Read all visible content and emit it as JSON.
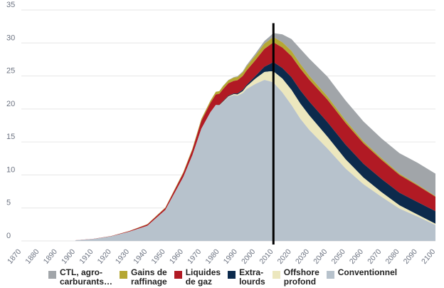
{
  "chart_data": {
    "type": "area",
    "title": "",
    "xlabel": "",
    "ylabel": "",
    "xlim": [
      1870,
      2100
    ],
    "ylim": [
      0,
      35
    ],
    "yticks": [
      0,
      5,
      10,
      15,
      20,
      25,
      30,
      35
    ],
    "xticks": [
      1870,
      1880,
      1890,
      1900,
      1910,
      1920,
      1930,
      1940,
      1950,
      1960,
      1970,
      1980,
      1990,
      2000,
      2010,
      2020,
      2030,
      2040,
      2050,
      2060,
      2070,
      2080,
      2090,
      2100
    ],
    "marker_year": 2010,
    "x": [
      1900,
      1910,
      1920,
      1930,
      1940,
      1950,
      1960,
      1965,
      1970,
      1975,
      1978,
      1980,
      1982,
      1985,
      1988,
      1990,
      1993,
      1995,
      2000,
      2005,
      2008,
      2010,
      2015,
      2020,
      2025,
      2030,
      2040,
      2050,
      2060,
      2070,
      2080,
      2090,
      2100
    ],
    "series": [
      {
        "name": "Conventionnel",
        "color": "#b7c2cc",
        "values": [
          0.1,
          0.3,
          0.7,
          1.4,
          2.3,
          4.7,
          9.7,
          13.0,
          17.0,
          19.5,
          20.6,
          20.5,
          21.0,
          21.8,
          22.1,
          22.0,
          22.4,
          23.0,
          23.8,
          24.4,
          24.2,
          24.0,
          22.5,
          20.6,
          18.5,
          16.8,
          14.0,
          11.0,
          8.6,
          6.7,
          4.9,
          3.7,
          2.4
        ]
      },
      {
        "name": "Offshore\nprofond",
        "color": "#ece7be",
        "values": [
          0,
          0,
          0,
          0,
          0,
          0,
          0,
          0,
          0,
          0,
          0,
          0.05,
          0.1,
          0.1,
          0.15,
          0.2,
          0.3,
          0.4,
          0.8,
          1.2,
          1.5,
          1.7,
          2.1,
          2.3,
          2.3,
          2.2,
          1.8,
          1.4,
          1.0,
          0.7,
          0.5,
          0.3,
          0.2
        ]
      },
      {
        "name": "Extra-\nlourds",
        "color": "#0c2a4c",
        "values": [
          0,
          0,
          0,
          0,
          0,
          0,
          0,
          0,
          0,
          0,
          0,
          0.05,
          0.1,
          0.1,
          0.1,
          0.15,
          0.2,
          0.2,
          0.4,
          0.8,
          1.1,
          1.4,
          1.6,
          1.9,
          2.0,
          2.1,
          2.2,
          2.2,
          2.1,
          2.0,
          1.9,
          1.9,
          1.9
        ]
      },
      {
        "name": "Liquides\nde gaz",
        "color": "#b11a24",
        "values": [
          0.01,
          0.02,
          0.05,
          0.1,
          0.2,
          0.3,
          0.6,
          0.8,
          1.2,
          1.4,
          1.6,
          1.7,
          1.8,
          1.9,
          1.9,
          2.0,
          2.1,
          2.2,
          2.4,
          2.7,
          2.9,
          3.0,
          3.1,
          3.2,
          3.3,
          3.3,
          3.4,
          3.3,
          3.1,
          2.9,
          2.7,
          2.5,
          2.2
        ]
      },
      {
        "name": "Gains de\nraffinage",
        "color": "#b5a733",
        "values": [
          0,
          0,
          0.01,
          0.02,
          0.05,
          0.08,
          0.15,
          0.2,
          0.3,
          0.35,
          0.4,
          0.4,
          0.45,
          0.45,
          0.5,
          0.5,
          0.55,
          0.6,
          0.7,
          0.8,
          0.8,
          0.8,
          0.8,
          0.8,
          0.7,
          0.6,
          0.5,
          0.4,
          0.3,
          0.25,
          0.2,
          0.15,
          0.1
        ]
      },
      {
        "name": "CTL, agro-\ncarburants…",
        "color": "#a1a5a9",
        "values": [
          0,
          0,
          0,
          0,
          0,
          0,
          0,
          0,
          0,
          0,
          0,
          0.02,
          0.05,
          0.05,
          0.08,
          0.1,
          0.15,
          0.2,
          0.3,
          0.4,
          0.5,
          0.6,
          1.2,
          1.8,
          2.3,
          2.6,
          3.0,
          3.0,
          3.0,
          3.0,
          3.1,
          3.3,
          3.4
        ]
      }
    ],
    "legend_order": [
      "CTL, agro-\ncarburants…",
      "Gains de\nraffinage",
      "Liquides\nde gaz",
      "Extra-\nlourds",
      "Offshore\nprofond",
      "Conventionnel"
    ]
  }
}
